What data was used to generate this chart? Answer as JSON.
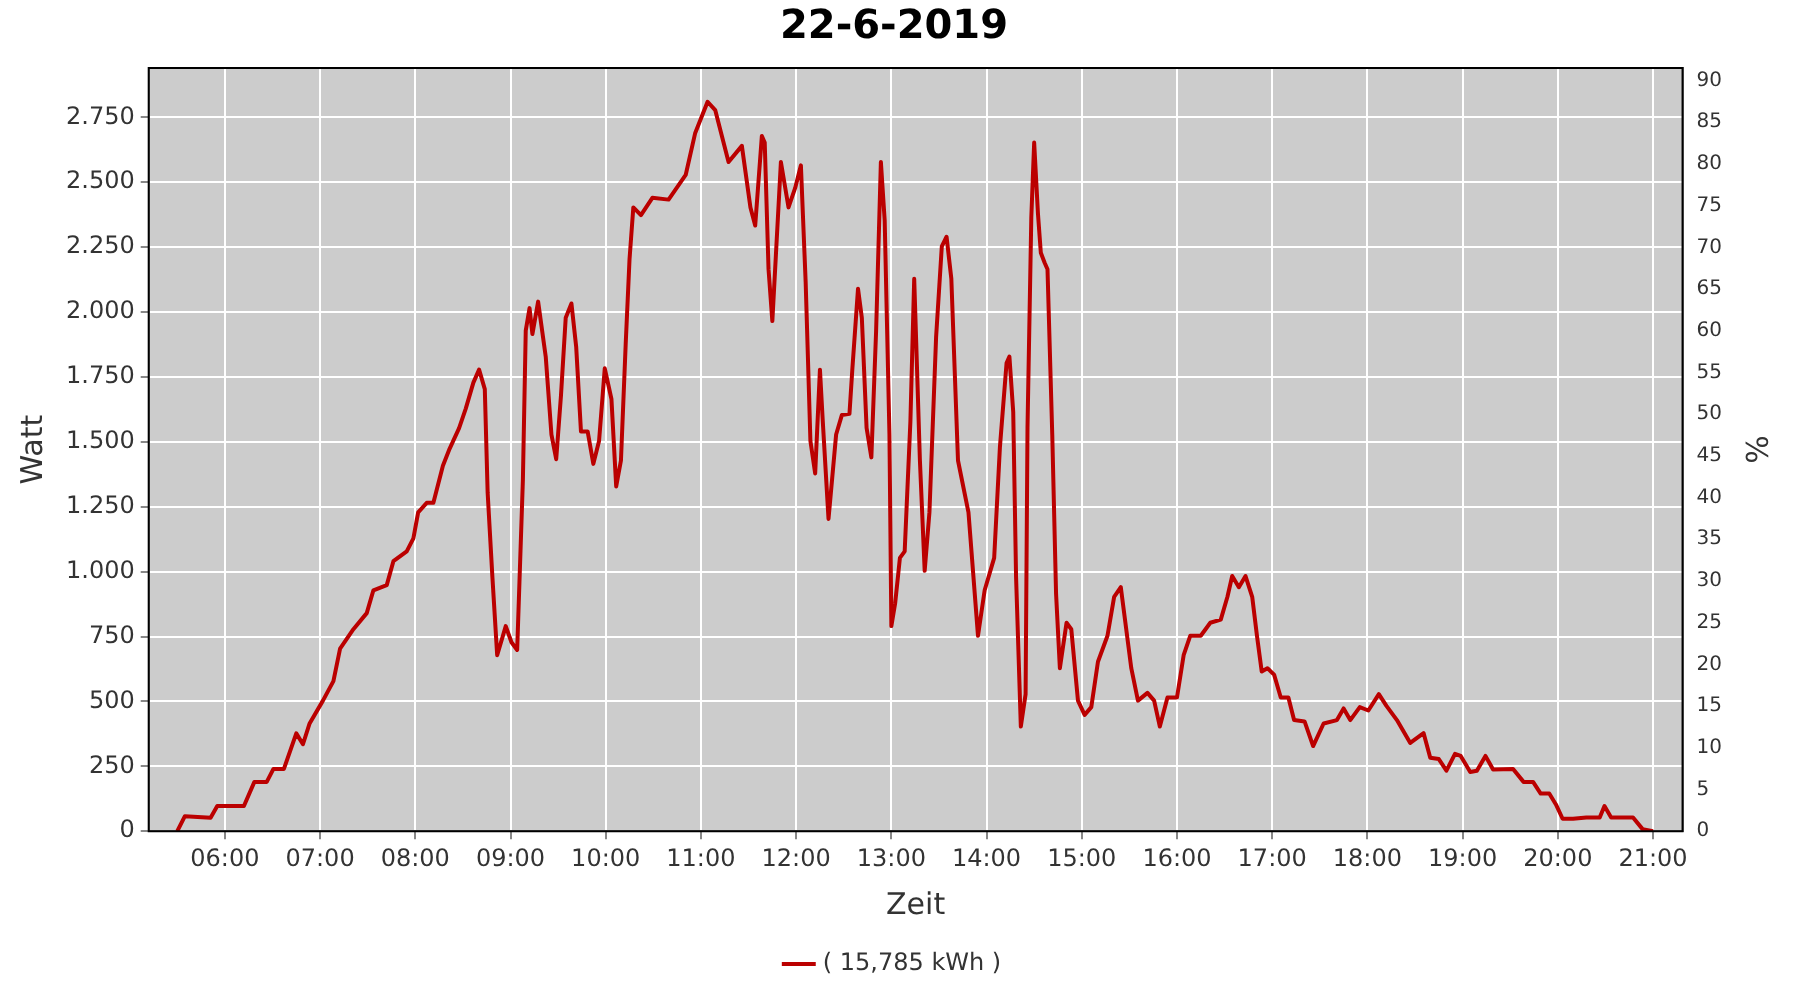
{
  "chart_data": {
    "type": "line",
    "title": "22-6-2019",
    "xlabel": "Zeit",
    "ylabel": "Watt",
    "y2label": "%",
    "xlim": [
      5.2,
      21.31
    ],
    "xticks": [
      {
        "value": 6,
        "label": "06:00"
      },
      {
        "value": 7,
        "label": "07:00"
      },
      {
        "value": 8,
        "label": "08:00"
      },
      {
        "value": 9,
        "label": "09:00"
      },
      {
        "value": 10,
        "label": "10:00"
      },
      {
        "value": 11,
        "label": "11:00"
      },
      {
        "value": 12,
        "label": "12:00"
      },
      {
        "value": 13,
        "label": "13:00"
      },
      {
        "value": 14,
        "label": "14:00"
      },
      {
        "value": 15,
        "label": "15:00"
      },
      {
        "value": 16,
        "label": "16:00"
      },
      {
        "value": 17,
        "label": "17:00"
      },
      {
        "value": 18,
        "label": "18:00"
      },
      {
        "value": 19,
        "label": "19:00"
      },
      {
        "value": 20,
        "label": "20:00"
      },
      {
        "value": 21,
        "label": "21:00"
      }
    ],
    "ylim": [
      0,
      2940
    ],
    "yticks": [
      0,
      250,
      500,
      750,
      {
        "value": 1000,
        "label": "1.000"
      },
      {
        "value": 1250,
        "label": "1.250"
      },
      {
        "value": 1500,
        "label": "1.500"
      },
      {
        "value": 1750,
        "label": "1.750"
      },
      {
        "value": 2000,
        "label": "2.000"
      },
      {
        "value": 2250,
        "label": "2.250"
      },
      {
        "value": 2500,
        "label": "2.500"
      },
      {
        "value": 2750,
        "label": "2.750"
      }
    ],
    "y2lim": [
      0,
      91.5
    ],
    "y2ticks": [
      0,
      5,
      10,
      15,
      20,
      25,
      30,
      35,
      40,
      45,
      50,
      55,
      60,
      65,
      70,
      75,
      80,
      85,
      90
    ],
    "grid": true,
    "legend": "bottom",
    "marker": "none",
    "line_style": "solid",
    "series": [
      {
        "name": "( 15,785 kWh )",
        "color": "#bb0000",
        "x": [
          5.5,
          5.58,
          5.85,
          5.92,
          6.2,
          6.31,
          6.44,
          6.51,
          6.62,
          6.75,
          6.82,
          6.89,
          7.03,
          7.14,
          7.21,
          7.35,
          7.49,
          7.56,
          7.7,
          7.77,
          7.91,
          7.98,
          8.03,
          8.12,
          8.19,
          8.29,
          8.36,
          8.46,
          8.53,
          8.61,
          8.67,
          8.73,
          8.76,
          8.81,
          8.86,
          8.95,
          9.01,
          9.07,
          9.13,
          9.16,
          9.2,
          9.23,
          9.29,
          9.37,
          9.43,
          9.48,
          9.53,
          9.58,
          9.64,
          9.69,
          9.74,
          9.81,
          9.87,
          9.93,
          9.99,
          10.06,
          10.11,
          10.16,
          10.21,
          10.25,
          10.29,
          10.37,
          10.49,
          10.66,
          10.84,
          10.94,
          11.07,
          11.15,
          11.29,
          11.43,
          11.52,
          11.57,
          11.64,
          11.67,
          11.71,
          11.75,
          11.84,
          11.92,
          11.99,
          12.05,
          12.1,
          12.15,
          12.2,
          12.25,
          12.28,
          12.34,
          12.42,
          12.48,
          12.56,
          12.59,
          12.65,
          12.69,
          12.74,
          12.79,
          12.84,
          12.89,
          12.93,
          12.98,
          13.0,
          13.04,
          13.09,
          13.14,
          13.2,
          13.24,
          13.3,
          13.35,
          13.4,
          13.47,
          13.53,
          13.58,
          13.63,
          13.7,
          13.81,
          13.91,
          13.98,
          14.08,
          14.14,
          14.21,
          14.24,
          14.28,
          14.31,
          14.36,
          14.41,
          14.43,
          14.47,
          14.5,
          14.54,
          14.57,
          14.61,
          14.64,
          14.69,
          14.73,
          14.77,
          14.84,
          14.89,
          14.96,
          15.03,
          15.1,
          15.17,
          15.27,
          15.34,
          15.41,
          15.52,
          15.59,
          15.69,
          15.76,
          15.82,
          15.9,
          16.0,
          16.07,
          16.14,
          16.25,
          16.35,
          16.46,
          16.53,
          16.58,
          16.65,
          16.72,
          16.79,
          16.84,
          16.89,
          16.95,
          17.02,
          17.09,
          17.17,
          17.23,
          17.34,
          17.43,
          17.54,
          17.68,
          17.75,
          17.82,
          17.92,
          18.01,
          18.12,
          18.2,
          18.31,
          18.45,
          18.59,
          18.66,
          18.75,
          18.83,
          18.92,
          18.98,
          19.08,
          19.15,
          19.24,
          19.32,
          19.53,
          19.64,
          19.74,
          19.82,
          19.91,
          19.98,
          20.05,
          20.16,
          20.3,
          20.44,
          20.49,
          20.56,
          20.79,
          20.89,
          21.0
        ],
        "values": [
          0,
          58,
          52,
          97,
          97,
          190,
          190,
          240,
          240,
          377,
          335,
          415,
          503,
          578,
          703,
          778,
          840,
          928,
          948,
          1040,
          1078,
          1128,
          1228,
          1265,
          1265,
          1408,
          1473,
          1553,
          1628,
          1728,
          1778,
          1703,
          1303,
          978,
          678,
          790,
          728,
          698,
          1353,
          1928,
          2015,
          1915,
          2040,
          1828,
          1528,
          1433,
          1678,
          1978,
          2033,
          1865,
          1540,
          1540,
          1415,
          1503,
          1783,
          1665,
          1328,
          1428,
          1878,
          2203,
          2403,
          2373,
          2440,
          2433,
          2528,
          2690,
          2810,
          2778,
          2578,
          2640,
          2403,
          2333,
          2678,
          2653,
          2165,
          1965,
          2578,
          2403,
          2478,
          2565,
          2115,
          1503,
          1378,
          1778,
          1578,
          1203,
          1528,
          1603,
          1608,
          1778,
          2090,
          1978,
          1553,
          1440,
          1928,
          2578,
          2353,
          1528,
          790,
          878,
          1053,
          1078,
          1578,
          2128,
          1428,
          1003,
          1228,
          1903,
          2253,
          2290,
          2128,
          1428,
          1228,
          753,
          928,
          1053,
          1478,
          1803,
          1828,
          1615,
          978,
          403,
          528,
          1553,
          2365,
          2653,
          2378,
          2228,
          2190,
          2165,
          1528,
          915,
          628,
          803,
          778,
          503,
          448,
          478,
          653,
          753,
          903,
          940,
          628,
          503,
          533,
          503,
          403,
          515,
          515,
          678,
          753,
          753,
          803,
          815,
          903,
          983,
          940,
          983,
          903,
          753,
          615,
          628,
          603,
          515,
          515,
          428,
          423,
          328,
          415,
          428,
          473,
          428,
          478,
          465,
          528,
          483,
          428,
          340,
          378,
          283,
          278,
          233,
          298,
          290,
          228,
          233,
          290,
          238,
          240,
          190,
          190,
          145,
          145,
          103,
          48,
          48,
          53,
          53,
          97,
          53,
          53,
          8,
          0
        ]
      }
    ]
  }
}
